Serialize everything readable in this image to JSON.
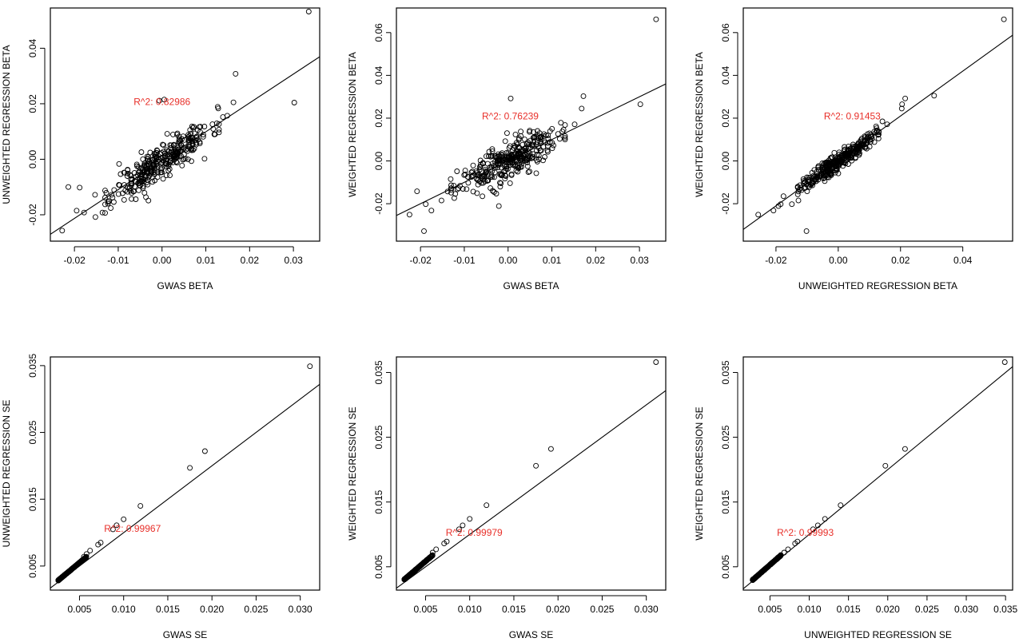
{
  "colors": {
    "annotation": "#e8302a",
    "points": "#000000",
    "axes": "#000000"
  },
  "chart_data": [
    {
      "type": "scatter",
      "xlabel": "GWAS BETA",
      "ylabel": "UNWEIGHTED REGRESSION BETA",
      "annotation": "R^2: 0.82986",
      "annotation_pos": [
        0.0,
        0.0195
      ],
      "xlim": [
        -0.0255,
        0.036
      ],
      "ylim": [
        -0.0295,
        0.0545
      ],
      "xticks": [
        -0.02,
        -0.01,
        0.0,
        0.01,
        0.02,
        0.03
      ],
      "xtick_labels": [
        "-0.02",
        "-0.01",
        "0.00",
        "0.01",
        "0.02",
        "0.03"
      ],
      "yticks": [
        -0.02,
        0.0,
        0.02,
        0.04
      ],
      "ytick_labels": [
        "-0.02",
        "0.00",
        "0.02",
        "0.04"
      ],
      "fit_line": {
        "slope": 1.04,
        "intercept": -0.0005
      },
      "gen": {
        "n": 330,
        "sx": 0.0055,
        "slope": 1.04,
        "intercept": -0.0005,
        "noise": 0.0031,
        "seed": 11
      },
      "points": [
        [
          0.0335,
          0.0532
        ],
        [
          0.0302,
          0.0204
        ],
        [
          0.0168,
          0.0308
        ],
        [
          0.0163,
          0.0205
        ],
        [
          0.0149,
          0.0157
        ],
        [
          0.0139,
          0.0152
        ],
        [
          0.0097,
          0.0002
        ],
        [
          0.0005,
          0.0215
        ],
        [
          -0.0006,
          0.0211
        ],
        [
          -0.0031,
          -0.0149
        ],
        [
          -0.0228,
          -0.0257
        ],
        [
          -0.0214,
          -0.01
        ],
        [
          -0.0195,
          -0.0185
        ],
        [
          -0.0188,
          -0.0102
        ],
        [
          -0.0178,
          -0.0192
        ],
        [
          -0.0153,
          -0.0128
        ],
        [
          -0.0152,
          -0.0208
        ],
        [
          -0.0136,
          -0.0192
        ],
        [
          -0.0117,
          -0.0176
        ],
        [
          -0.0115,
          -0.0128
        ]
      ]
    },
    {
      "type": "scatter",
      "xlabel": "GWAS BETA",
      "ylabel": "WEIGHTED REGRESSION BETA",
      "annotation": "R^2: 0.76239",
      "annotation_pos": [
        0.0005,
        0.0195
      ],
      "xlim": [
        -0.0255,
        0.036
      ],
      "ylim": [
        -0.0375,
        0.0715
      ],
      "xticks": [
        -0.02,
        -0.01,
        0.0,
        0.01,
        0.02,
        0.03
      ],
      "xtick_labels": [
        "-0.02",
        "-0.01",
        "0.00",
        "0.01",
        "0.02",
        "0.03"
      ],
      "yticks": [
        -0.02,
        0.0,
        0.02,
        0.04,
        0.06
      ],
      "ytick_labels": [
        "-0.02",
        "0.00",
        "0.02",
        "0.04",
        "0.06"
      ],
      "fit_line": {
        "slope": 1.0,
        "intercept": 0.0
      },
      "gen": {
        "n": 330,
        "sx": 0.0055,
        "slope": 0.95,
        "intercept": 0.0,
        "noise": 0.0043,
        "seed": 23
      },
      "points": [
        [
          0.0338,
          0.0662
        ],
        [
          0.0302,
          0.0265
        ],
        [
          0.0172,
          0.0303
        ],
        [
          0.0168,
          0.0245
        ],
        [
          0.0152,
          0.0171
        ],
        [
          0.0006,
          0.0292
        ],
        [
          -0.0021,
          -0.0211
        ],
        [
          -0.0225,
          -0.0251
        ],
        [
          -0.0208,
          -0.0142
        ],
        [
          -0.0192,
          -0.0328
        ],
        [
          -0.0188,
          -0.0202
        ],
        [
          -0.0175,
          -0.0232
        ],
        [
          -0.0152,
          -0.0185
        ],
        [
          -0.0138,
          -0.0143
        ],
        [
          -0.0131,
          -0.0085
        ],
        [
          0.0118,
          0.0103
        ]
      ]
    },
    {
      "type": "scatter",
      "xlabel": "UNWEIGHTED REGRESSION BETA",
      "ylabel": "WEIGHTED REGRESSION BETA",
      "annotation": "R^2: 0.91453",
      "annotation_pos": [
        0.0045,
        0.0195
      ],
      "xlim": [
        -0.0305,
        0.056
      ],
      "ylim": [
        -0.0375,
        0.0715
      ],
      "xticks": [
        -0.02,
        0.0,
        0.02,
        0.04
      ],
      "xtick_labels": [
        "-0.02",
        "0.00",
        "0.02",
        "0.04"
      ],
      "yticks": [
        -0.02,
        0.0,
        0.02,
        0.04,
        0.06
      ],
      "ytick_labels": [
        "-0.02",
        "0.00",
        "0.02",
        "0.04",
        "0.06"
      ],
      "fit_line": {
        "slope": 1.05,
        "intercept": 0.0
      },
      "gen": {
        "n": 330,
        "sx": 0.0058,
        "slope": 1.02,
        "intercept": 0.0,
        "noise": 0.0021,
        "seed": 37
      },
      "points": [
        [
          0.0532,
          0.0662
        ],
        [
          0.0308,
          0.0305
        ],
        [
          0.0215,
          0.0292
        ],
        [
          0.0205,
          0.0265
        ],
        [
          0.0204,
          0.0245
        ],
        [
          0.0157,
          0.0171
        ],
        [
          -0.0257,
          -0.0251
        ],
        [
          -0.0208,
          -0.0232
        ],
        [
          -0.0185,
          -0.0202
        ],
        [
          -0.0192,
          -0.0211
        ],
        [
          -0.0149,
          -0.0202
        ],
        [
          -0.0128,
          -0.0185
        ],
        [
          -0.0102,
          -0.0328
        ],
        [
          -0.01,
          -0.0142
        ],
        [
          -0.0176,
          -0.0165
        ],
        [
          -0.0128,
          -0.0143
        ],
        [
          -0.0112,
          -0.0085
        ],
        [
          0.0142,
          0.0185
        ]
      ]
    },
    {
      "type": "scatter",
      "xlabel": "GWAS SE",
      "ylabel": "UNWEIGHTED REGRESSION SE",
      "annotation": "R^2: 0.99967",
      "annotation_pos": [
        0.011,
        0.0101
      ],
      "xlim": [
        0.0017,
        0.0322
      ],
      "ylim": [
        0.0014,
        0.0363
      ],
      "xticks": [
        0.005,
        0.01,
        0.015,
        0.02,
        0.025,
        0.03
      ],
      "xtick_labels": [
        "0.005",
        "0.010",
        "0.015",
        "0.020",
        "0.025",
        "0.030"
      ],
      "yticks": [
        0.005,
        0.015,
        0.025,
        0.035
      ],
      "ytick_labels": [
        "0.005",
        "0.015",
        "0.025",
        "0.035"
      ],
      "fit_line": {
        "slope": 1.0,
        "intercept": 0.0
      },
      "gen_se": {
        "n": 260,
        "x0": 0.0026,
        "x1": 0.0058,
        "slope": 1.1,
        "seed": 41
      },
      "points": [
        [
          0.0311,
          0.0349
        ],
        [
          0.0192,
          0.0222
        ],
        [
          0.0175,
          0.0197
        ],
        [
          0.0119,
          0.014
        ],
        [
          0.01,
          0.012
        ],
        [
          0.0092,
          0.0111
        ],
        [
          0.0088,
          0.0105
        ],
        [
          0.0074,
          0.0085
        ],
        [
          0.0071,
          0.0082
        ],
        [
          0.0062,
          0.0073
        ],
        [
          0.0058,
          0.0068
        ],
        [
          0.0055,
          0.0064
        ]
      ]
    },
    {
      "type": "scatter",
      "xlabel": "GWAS SE",
      "ylabel": "WEIGHTED REGRESSION SE",
      "annotation": "R^2: 0.99979",
      "annotation_pos": [
        0.0105,
        0.0098
      ],
      "xlim": [
        0.0017,
        0.0322
      ],
      "ylim": [
        0.0014,
        0.0374
      ],
      "xticks": [
        0.005,
        0.01,
        0.015,
        0.02,
        0.025,
        0.03
      ],
      "xtick_labels": [
        "0.005",
        "0.010",
        "0.015",
        "0.020",
        "0.025",
        "0.030"
      ],
      "yticks": [
        0.005,
        0.015,
        0.025,
        0.035
      ],
      "ytick_labels": [
        "0.005",
        "0.015",
        "0.025",
        "0.035"
      ],
      "fit_line": {
        "slope": 1.0,
        "intercept": 0.0
      },
      "gen_se": {
        "n": 260,
        "x0": 0.0026,
        "x1": 0.0058,
        "slope": 1.17,
        "seed": 53
      },
      "points": [
        [
          0.0311,
          0.0366
        ],
        [
          0.0192,
          0.0232
        ],
        [
          0.0175,
          0.0206
        ],
        [
          0.0119,
          0.0145
        ],
        [
          0.01,
          0.0124
        ],
        [
          0.0092,
          0.0114
        ],
        [
          0.0088,
          0.0108
        ],
        [
          0.0074,
          0.0089
        ],
        [
          0.0071,
          0.0086
        ],
        [
          0.0062,
          0.0077
        ],
        [
          0.0058,
          0.0072
        ]
      ]
    },
    {
      "type": "scatter",
      "xlabel": "UNWEIGHTED REGRESSION SE",
      "ylabel": "WEIGHTED REGRESSION SE",
      "annotation": "R^2: 0.99993",
      "annotation_pos": [
        0.0095,
        0.0098
      ],
      "xlim": [
        0.0016,
        0.0359
      ],
      "ylim": [
        0.0014,
        0.0374
      ],
      "xticks": [
        0.005,
        0.01,
        0.015,
        0.02,
        0.025,
        0.03,
        0.035
      ],
      "xtick_labels": [
        "0.005",
        "0.010",
        "0.015",
        "0.020",
        "0.025",
        "0.030",
        "0.035"
      ],
      "yticks": [
        0.005,
        0.015,
        0.025,
        0.035
      ],
      "ytick_labels": [
        "0.005",
        "0.015",
        "0.025",
        "0.035"
      ],
      "fit_line": {
        "slope": 1.0,
        "intercept": 0.0
      },
      "gen_se": {
        "n": 260,
        "x0": 0.0028,
        "x1": 0.0064,
        "slope": 1.06,
        "seed": 67
      },
      "points": [
        [
          0.0349,
          0.0366
        ],
        [
          0.0222,
          0.0232
        ],
        [
          0.0197,
          0.0206
        ],
        [
          0.014,
          0.0145
        ],
        [
          0.012,
          0.0124
        ],
        [
          0.0111,
          0.0114
        ],
        [
          0.0105,
          0.0108
        ],
        [
          0.0085,
          0.0089
        ],
        [
          0.0082,
          0.0086
        ],
        [
          0.0073,
          0.0077
        ],
        [
          0.0068,
          0.0072
        ]
      ]
    }
  ]
}
